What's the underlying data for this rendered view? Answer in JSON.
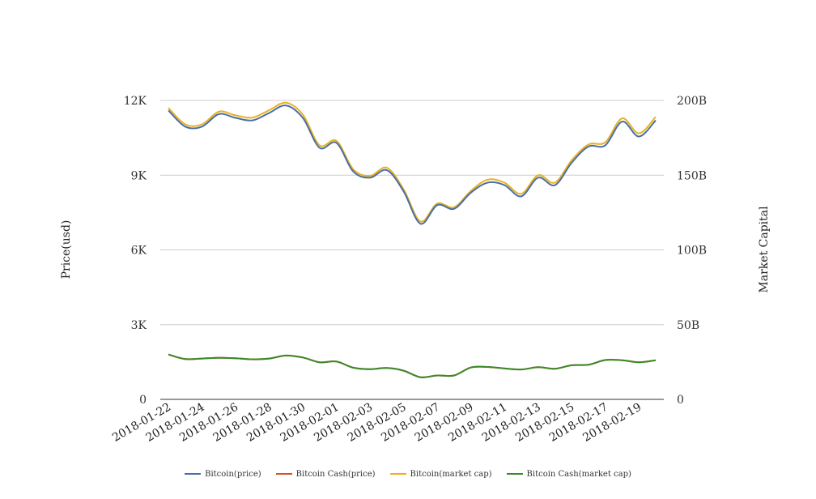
{
  "chart_data": {
    "type": "line",
    "title": "",
    "ylabel_left": "Price(usd)",
    "ylabel_right": "Market Capital",
    "y_left": {
      "ticks": [
        0,
        3000,
        6000,
        9000,
        12000
      ],
      "tick_labels": [
        "0",
        "3K",
        "6K",
        "9K",
        "12K"
      ],
      "range": [
        0,
        12000
      ]
    },
    "y_right": {
      "ticks": [
        0,
        50000000000,
        100000000000,
        150000000000,
        200000000000
      ],
      "tick_labels": [
        "0",
        "50B",
        "100B",
        "150B",
        "200B"
      ],
      "range": [
        0,
        200000000000
      ]
    },
    "grid": true,
    "legend_position": "bottom",
    "x": [
      "2018-01-22",
      "2018-01-23",
      "2018-01-24",
      "2018-01-25",
      "2018-01-26",
      "2018-01-27",
      "2018-01-28",
      "2018-01-29",
      "2018-01-30",
      "2018-01-31",
      "2018-02-01",
      "2018-02-02",
      "2018-02-03",
      "2018-02-04",
      "2018-02-05",
      "2018-02-06",
      "2018-02-07",
      "2018-02-08",
      "2018-02-09",
      "2018-02-10",
      "2018-02-11",
      "2018-02-12",
      "2018-02-13",
      "2018-02-14",
      "2018-02-15",
      "2018-02-16",
      "2018-02-17",
      "2018-02-18",
      "2018-02-19",
      "2018-02-20"
    ],
    "x_tick_labels": [
      "2018-01-22",
      "2018-01-24",
      "2018-01-26",
      "2018-01-28",
      "2018-01-30",
      "2018-02-01",
      "2018-02-03",
      "2018-02-05",
      "2018-02-07",
      "2018-02-09",
      "2018-02-11",
      "2018-02-13",
      "2018-02-15",
      "2018-02-17",
      "2018-02-19"
    ],
    "series": [
      {
        "name": "Bitcoin(price)",
        "axis": "left",
        "color": "#4a6fa5",
        "values": [
          11600,
          10950,
          10950,
          11450,
          11300,
          11200,
          11500,
          11800,
          11300,
          10100,
          10300,
          9150,
          8900,
          9200,
          8350,
          7050,
          7800,
          7650,
          8300,
          8700,
          8600,
          8150,
          8900,
          8600,
          9500,
          10150,
          10200,
          11150,
          10550,
          11200
        ]
      },
      {
        "name": "Bitcoin Cash(price)",
        "axis": "left",
        "color": "#d4522a",
        "values": [
          1800,
          1620,
          1640,
          1670,
          1650,
          1610,
          1640,
          1760,
          1680,
          1490,
          1520,
          1270,
          1210,
          1260,
          1150,
          890,
          960,
          960,
          1280,
          1300,
          1240,
          1200,
          1290,
          1230,
          1370,
          1390,
          1580,
          1570,
          1490,
          1570
        ]
      },
      {
        "name": "Bitcoin(market cap)",
        "axis": "right",
        "color": "#e8b120",
        "values": [
          195000000000,
          184000000000,
          184000000000,
          192500000000,
          190000000000,
          188500000000,
          193500000000,
          198500000000,
          190500000000,
          170000000000,
          173000000000,
          154000000000,
          149500000000,
          155000000000,
          140500000000,
          119000000000,
          131000000000,
          128500000000,
          139500000000,
          147000000000,
          145000000000,
          137500000000,
          150000000000,
          145000000000,
          160000000000,
          170500000000,
          172000000000,
          188000000000,
          178000000000,
          189000000000
        ]
      },
      {
        "name": "Bitcoin Cash(market cap)",
        "axis": "right",
        "color": "#3a8a2a",
        "values": [
          30000000000,
          27000000000,
          27300000000,
          27800000000,
          27500000000,
          26800000000,
          27300000000,
          29300000000,
          28000000000,
          24800000000,
          25300000000,
          21200000000,
          20200000000,
          21000000000,
          19200000000,
          14800000000,
          16000000000,
          16000000000,
          21300000000,
          21700000000,
          20700000000,
          20000000000,
          21500000000,
          20500000000,
          22800000000,
          23200000000,
          26300000000,
          26200000000,
          24800000000,
          26200000000
        ]
      }
    ]
  }
}
